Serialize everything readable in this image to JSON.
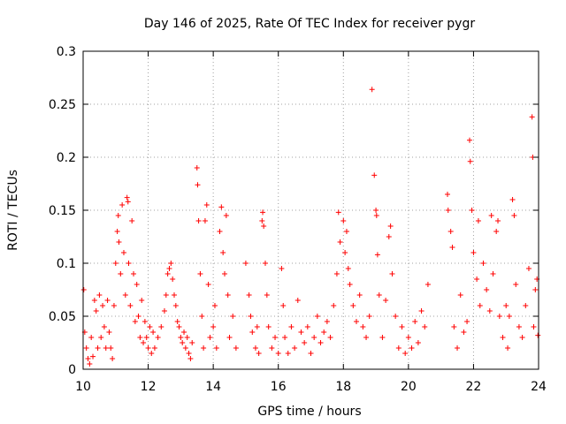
{
  "chart_data": {
    "type": "scatter",
    "title": "Day 146 of 2025, Rate Of TEC Index for receiver pygr",
    "xlabel": "GPS time / hours",
    "ylabel": "ROTI / TECUs",
    "xlim": [
      10,
      24
    ],
    "ylim": [
      0,
      0.3
    ],
    "x_ticks": [
      10,
      12,
      14,
      16,
      18,
      20,
      22,
      24
    ],
    "x_tick_labels": [
      "10",
      "12",
      "14",
      "16",
      "18",
      "20",
      "22",
      "24"
    ],
    "y_ticks": [
      0,
      0.05,
      0.1,
      0.15,
      0.2,
      0.25,
      0.3
    ],
    "y_tick_labels": [
      "0",
      "0.05",
      "0.1",
      "0.15",
      "0.2",
      "0.25",
      "0.3"
    ],
    "grid": true,
    "marker": "+",
    "color": "#ff0000",
    "series": [
      {
        "name": "ROTI",
        "points": [
          [
            10.02,
            0.075
          ],
          [
            10.05,
            0.035
          ],
          [
            10.1,
            0.02
          ],
          [
            10.15,
            0.01
          ],
          [
            10.2,
            0.005
          ],
          [
            10.25,
            0.03
          ],
          [
            10.3,
            0.012
          ],
          [
            10.35,
            0.065
          ],
          [
            10.4,
            0.055
          ],
          [
            10.45,
            0.02
          ],
          [
            10.5,
            0.07
          ],
          [
            10.55,
            0.03
          ],
          [
            10.6,
            0.06
          ],
          [
            10.65,
            0.04
          ],
          [
            10.7,
            0.02
          ],
          [
            10.75,
            0.065
          ],
          [
            10.8,
            0.035
          ],
          [
            10.85,
            0.02
          ],
          [
            10.9,
            0.01
          ],
          [
            10.95,
            0.06
          ],
          [
            11.0,
            0.1
          ],
          [
            11.05,
            0.13
          ],
          [
            11.08,
            0.145
          ],
          [
            11.1,
            0.12
          ],
          [
            11.15,
            0.09
          ],
          [
            11.2,
            0.155
          ],
          [
            11.25,
            0.11
          ],
          [
            11.3,
            0.07
          ],
          [
            11.35,
            0.162
          ],
          [
            11.38,
            0.158
          ],
          [
            11.4,
            0.1
          ],
          [
            11.45,
            0.06
          ],
          [
            11.5,
            0.14
          ],
          [
            11.55,
            0.09
          ],
          [
            11.6,
            0.045
          ],
          [
            11.65,
            0.08
          ],
          [
            11.7,
            0.05
          ],
          [
            11.75,
            0.03
          ],
          [
            11.8,
            0.065
          ],
          [
            11.85,
            0.025
          ],
          [
            11.9,
            0.045
          ],
          [
            11.95,
            0.03
          ],
          [
            12.0,
            0.02
          ],
          [
            12.05,
            0.04
          ],
          [
            12.1,
            0.015
          ],
          [
            12.15,
            0.035
          ],
          [
            12.2,
            0.02
          ],
          [
            12.3,
            0.03
          ],
          [
            12.4,
            0.04
          ],
          [
            12.5,
            0.055
          ],
          [
            12.55,
            0.07
          ],
          [
            12.6,
            0.09
          ],
          [
            12.65,
            0.095
          ],
          [
            12.7,
            0.1
          ],
          [
            12.75,
            0.085
          ],
          [
            12.8,
            0.07
          ],
          [
            12.85,
            0.06
          ],
          [
            12.9,
            0.045
          ],
          [
            12.95,
            0.04
          ],
          [
            13.0,
            0.03
          ],
          [
            13.05,
            0.025
          ],
          [
            13.1,
            0.035
          ],
          [
            13.15,
            0.02
          ],
          [
            13.2,
            0.03
          ],
          [
            13.25,
            0.015
          ],
          [
            13.3,
            0.01
          ],
          [
            13.35,
            0.025
          ],
          [
            13.5,
            0.19
          ],
          [
            13.52,
            0.174
          ],
          [
            13.55,
            0.14
          ],
          [
            13.6,
            0.09
          ],
          [
            13.65,
            0.05
          ],
          [
            13.7,
            0.02
          ],
          [
            13.75,
            0.14
          ],
          [
            13.8,
            0.155
          ],
          [
            13.85,
            0.08
          ],
          [
            13.9,
            0.03
          ],
          [
            14.0,
            0.04
          ],
          [
            14.05,
            0.06
          ],
          [
            14.1,
            0.02
          ],
          [
            14.2,
            0.13
          ],
          [
            14.25,
            0.153
          ],
          [
            14.3,
            0.11
          ],
          [
            14.35,
            0.09
          ],
          [
            14.4,
            0.145
          ],
          [
            14.45,
            0.07
          ],
          [
            14.5,
            0.03
          ],
          [
            14.6,
            0.05
          ],
          [
            14.7,
            0.02
          ],
          [
            15.0,
            0.1
          ],
          [
            15.1,
            0.07
          ],
          [
            15.15,
            0.05
          ],
          [
            15.2,
            0.035
          ],
          [
            15.3,
            0.02
          ],
          [
            15.35,
            0.04
          ],
          [
            15.4,
            0.015
          ],
          [
            15.5,
            0.14
          ],
          [
            15.52,
            0.148
          ],
          [
            15.55,
            0.135
          ],
          [
            15.6,
            0.1
          ],
          [
            15.65,
            0.07
          ],
          [
            15.7,
            0.04
          ],
          [
            15.8,
            0.02
          ],
          [
            15.9,
            0.03
          ],
          [
            16.0,
            0.015
          ],
          [
            16.1,
            0.095
          ],
          [
            16.15,
            0.06
          ],
          [
            16.2,
            0.03
          ],
          [
            16.3,
            0.015
          ],
          [
            16.4,
            0.04
          ],
          [
            16.5,
            0.02
          ],
          [
            16.6,
            0.065
          ],
          [
            16.7,
            0.035
          ],
          [
            16.8,
            0.025
          ],
          [
            16.9,
            0.04
          ],
          [
            17.0,
            0.015
          ],
          [
            17.1,
            0.03
          ],
          [
            17.2,
            0.05
          ],
          [
            17.3,
            0.025
          ],
          [
            17.4,
            0.035
          ],
          [
            17.5,
            0.045
          ],
          [
            17.6,
            0.03
          ],
          [
            17.7,
            0.06
          ],
          [
            17.8,
            0.09
          ],
          [
            17.85,
            0.148
          ],
          [
            17.9,
            0.12
          ],
          [
            18.0,
            0.14
          ],
          [
            18.05,
            0.11
          ],
          [
            18.1,
            0.13
          ],
          [
            18.15,
            0.095
          ],
          [
            18.2,
            0.08
          ],
          [
            18.3,
            0.06
          ],
          [
            18.4,
            0.045
          ],
          [
            18.5,
            0.07
          ],
          [
            18.6,
            0.04
          ],
          [
            18.7,
            0.03
          ],
          [
            18.8,
            0.05
          ],
          [
            18.88,
            0.264
          ],
          [
            18.95,
            0.183
          ],
          [
            19.0,
            0.15
          ],
          [
            19.02,
            0.145
          ],
          [
            19.05,
            0.108
          ],
          [
            19.1,
            0.07
          ],
          [
            19.2,
            0.03
          ],
          [
            19.3,
            0.065
          ],
          [
            19.4,
            0.125
          ],
          [
            19.45,
            0.135
          ],
          [
            19.5,
            0.09
          ],
          [
            19.6,
            0.05
          ],
          [
            19.7,
            0.02
          ],
          [
            19.8,
            0.04
          ],
          [
            19.9,
            0.015
          ],
          [
            20.0,
            0.03
          ],
          [
            20.1,
            0.02
          ],
          [
            20.2,
            0.045
          ],
          [
            20.3,
            0.025
          ],
          [
            20.4,
            0.055
          ],
          [
            20.5,
            0.04
          ],
          [
            20.6,
            0.08
          ],
          [
            21.2,
            0.165
          ],
          [
            21.22,
            0.15
          ],
          [
            21.3,
            0.13
          ],
          [
            21.35,
            0.115
          ],
          [
            21.4,
            0.04
          ],
          [
            21.5,
            0.02
          ],
          [
            21.6,
            0.07
          ],
          [
            21.7,
            0.035
          ],
          [
            21.8,
            0.045
          ],
          [
            21.88,
            0.216
          ],
          [
            21.9,
            0.196
          ],
          [
            21.95,
            0.15
          ],
          [
            22.0,
            0.11
          ],
          [
            22.1,
            0.085
          ],
          [
            22.15,
            0.14
          ],
          [
            22.2,
            0.06
          ],
          [
            22.3,
            0.1
          ],
          [
            22.4,
            0.075
          ],
          [
            22.5,
            0.055
          ],
          [
            22.55,
            0.145
          ],
          [
            22.6,
            0.09
          ],
          [
            22.7,
            0.13
          ],
          [
            22.75,
            0.14
          ],
          [
            22.8,
            0.05
          ],
          [
            22.9,
            0.03
          ],
          [
            23.0,
            0.06
          ],
          [
            23.05,
            0.02
          ],
          [
            23.1,
            0.05
          ],
          [
            23.2,
            0.16
          ],
          [
            23.25,
            0.145
          ],
          [
            23.3,
            0.08
          ],
          [
            23.4,
            0.04
          ],
          [
            23.5,
            0.03
          ],
          [
            23.6,
            0.06
          ],
          [
            23.7,
            0.095
          ],
          [
            23.8,
            0.238
          ],
          [
            23.82,
            0.2
          ],
          [
            23.85,
            0.04
          ],
          [
            23.9,
            0.075
          ],
          [
            23.95,
            0.085
          ],
          [
            23.98,
            0.032
          ]
        ]
      }
    ]
  }
}
